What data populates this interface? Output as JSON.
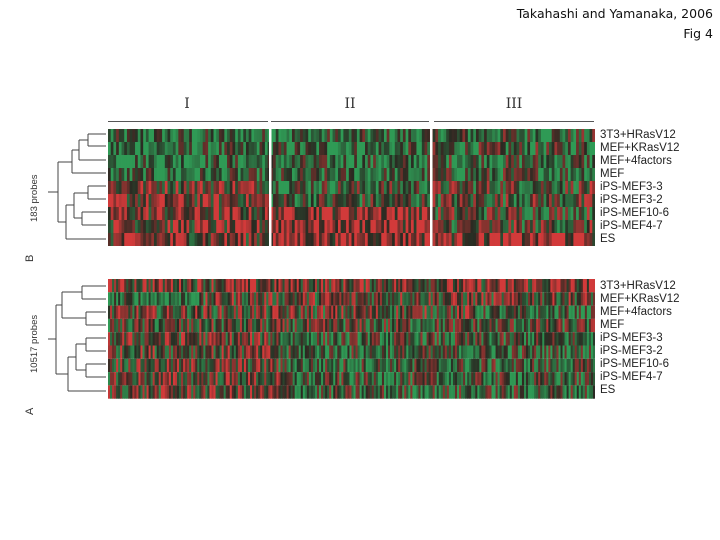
{
  "citation": {
    "line1": "Takahashi and Yamanaka, 2006",
    "line2": "Fig 4"
  },
  "groups": [
    "I",
    "II",
    "III"
  ],
  "panel_b": {
    "letter": "B",
    "probe_label": "183 probes",
    "rows": [
      "3T3+HRasV12",
      "MEF+KRasV12",
      "MEF+4factors",
      "MEF",
      "iPS-MEF3-3",
      "iPS-MEF3-2",
      "iPS-MEF10-6",
      "iPS-MEF4-7",
      "ES"
    ]
  },
  "panel_a": {
    "letter": "A",
    "probe_label": "10517 probes",
    "rows": [
      "3T3+HRasV12",
      "MEF+KRasV12",
      "MEF+4factors",
      "MEF",
      "iPS-MEF3-3",
      "iPS-MEF3-2",
      "iPS-MEF10-6",
      "iPS-MEF4-7",
      "ES"
    ]
  },
  "colors": {
    "high": "#d23a3a",
    "low": "#2f9a55",
    "mid": "#2a2a22"
  }
}
